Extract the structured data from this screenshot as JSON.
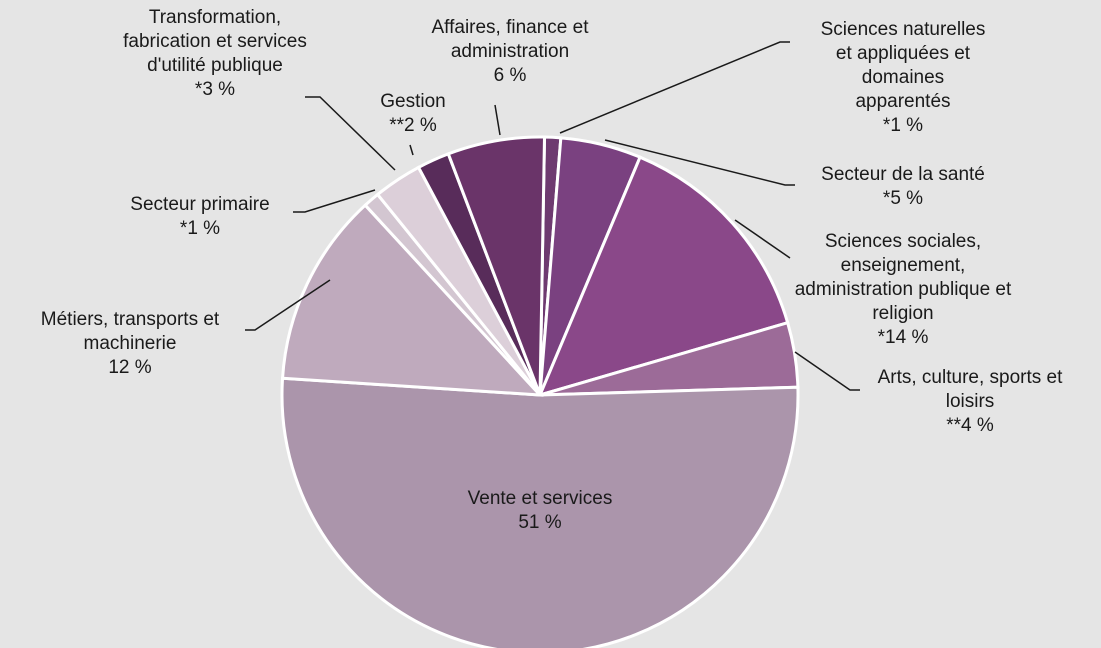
{
  "chart_data": {
    "type": "pie",
    "categories": [
      "Sciences naturelles et appliquées et domaines apparentés",
      "Secteur de la santé",
      "Sciences sociales, enseignement, administration publique et religion",
      "Arts, culture, sports et loisirs",
      "Vente et services",
      "Métiers, transports et machinerie",
      "Secteur primaire",
      "Transformation, fabrication et services d'utilité publique",
      "Gestion",
      "Affaires, finance et administration"
    ],
    "values": [
      1,
      5,
      14,
      4,
      51,
      12,
      1,
      3,
      2,
      6
    ],
    "value_labels": [
      "*1 %",
      "*5 %",
      "*14 %",
      "**4 %",
      "51 %",
      "12 %",
      "*1 %",
      "*3 %",
      "**2 %",
      "6 %"
    ],
    "colors": [
      "#6e3a70",
      "#7a4180",
      "#8a4889",
      "#9c6b98",
      "#ab95ab",
      "#bfaabd",
      "#d3c6d1",
      "#dccfd9",
      "#582c5a",
      "#6a3469"
    ]
  }
}
